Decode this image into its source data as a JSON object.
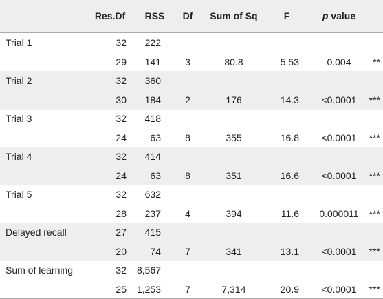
{
  "columns": {
    "resdf": "Res.Df",
    "rss": "RSS",
    "df": "Df",
    "sumsq": "Sum of Sq",
    "f": "F",
    "p_italic": "p",
    "p_rest": " value"
  },
  "rows": [
    {
      "label": "Trial 1",
      "resdf": "32",
      "rss": "222",
      "df": "",
      "sumsq": "",
      "f": "",
      "p": "",
      "sig": ""
    },
    {
      "label": "",
      "resdf": "29",
      "rss": "141",
      "df": "3",
      "sumsq": "80.8",
      "f": "5.53",
      "p": "0.004",
      "sig": "**"
    },
    {
      "label": "Trial 2",
      "resdf": "32",
      "rss": "360",
      "df": "",
      "sumsq": "",
      "f": "",
      "p": "",
      "sig": ""
    },
    {
      "label": "",
      "resdf": "30",
      "rss": "184",
      "df": "2",
      "sumsq": "176",
      "f": "14.3",
      "p": "<0.0001",
      "sig": "***"
    },
    {
      "label": "Trial 3",
      "resdf": "32",
      "rss": "418",
      "df": "",
      "sumsq": "",
      "f": "",
      "p": "",
      "sig": ""
    },
    {
      "label": "",
      "resdf": "24",
      "rss": "63",
      "df": "8",
      "sumsq": "355",
      "f": "16.8",
      "p": "<0.0001",
      "sig": "***"
    },
    {
      "label": "Trial 4",
      "resdf": "32",
      "rss": "414",
      "df": "",
      "sumsq": "",
      "f": "",
      "p": "",
      "sig": ""
    },
    {
      "label": "",
      "resdf": "24",
      "rss": "63",
      "df": "8",
      "sumsq": "351",
      "f": "16.6",
      "p": "<0.0001",
      "sig": "***"
    },
    {
      "label": "Trial 5",
      "resdf": "32",
      "rss": "632",
      "df": "",
      "sumsq": "",
      "f": "",
      "p": "",
      "sig": ""
    },
    {
      "label": "",
      "resdf": "28",
      "rss": "237",
      "df": "4",
      "sumsq": "394",
      "f": "11.6",
      "p": "0.000011",
      "sig": "***"
    },
    {
      "label": "Delayed recall",
      "resdf": "27",
      "rss": "415",
      "df": "",
      "sumsq": "",
      "f": "",
      "p": "",
      "sig": ""
    },
    {
      "label": "",
      "resdf": "20",
      "rss": "74",
      "df": "7",
      "sumsq": "341",
      "f": "13.1",
      "p": "<0.0001",
      "sig": "***"
    },
    {
      "label": "Sum of learning",
      "resdf": "32",
      "rss": "8,567",
      "df": "",
      "sumsq": "",
      "f": "",
      "p": "",
      "sig": ""
    },
    {
      "label": "",
      "resdf": "25",
      "rss": "1,253",
      "df": "7",
      "sumsq": "7,314",
      "f": "20.9",
      "p": "<0.0001",
      "sig": "***"
    }
  ],
  "colors": {
    "header_bg": "#eeeeee",
    "shade_bg": "#eeeeee",
    "rule": "#aaaaaa",
    "text": "#222222"
  }
}
